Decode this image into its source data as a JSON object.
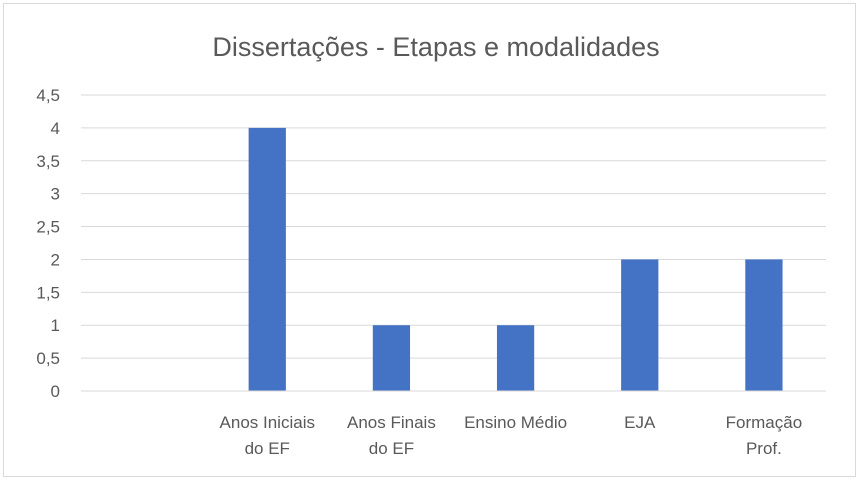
{
  "chart_data": {
    "type": "bar",
    "title": "Dissertações - Etapas e modalidades",
    "categories": [
      [
        "",
        ""
      ],
      [
        "Anos Iniciais",
        "do EF"
      ],
      [
        "Anos Finais",
        "do EF"
      ],
      [
        "Ensino Médio",
        ""
      ],
      [
        "EJA",
        ""
      ],
      [
        "Formação",
        "Prof."
      ]
    ],
    "values": [
      0,
      4,
      1,
      1,
      2,
      2
    ],
    "ylim": [
      0,
      4.5
    ],
    "yticks": [
      "0",
      "0,5",
      "1",
      "1,5",
      "2",
      "2,5",
      "3",
      "3,5",
      "4",
      "4,5"
    ],
    "grid": true,
    "legend": "none",
    "bar_color": "#4472c4",
    "grid_color": "#d9d9d9",
    "text_color": "#595959"
  }
}
